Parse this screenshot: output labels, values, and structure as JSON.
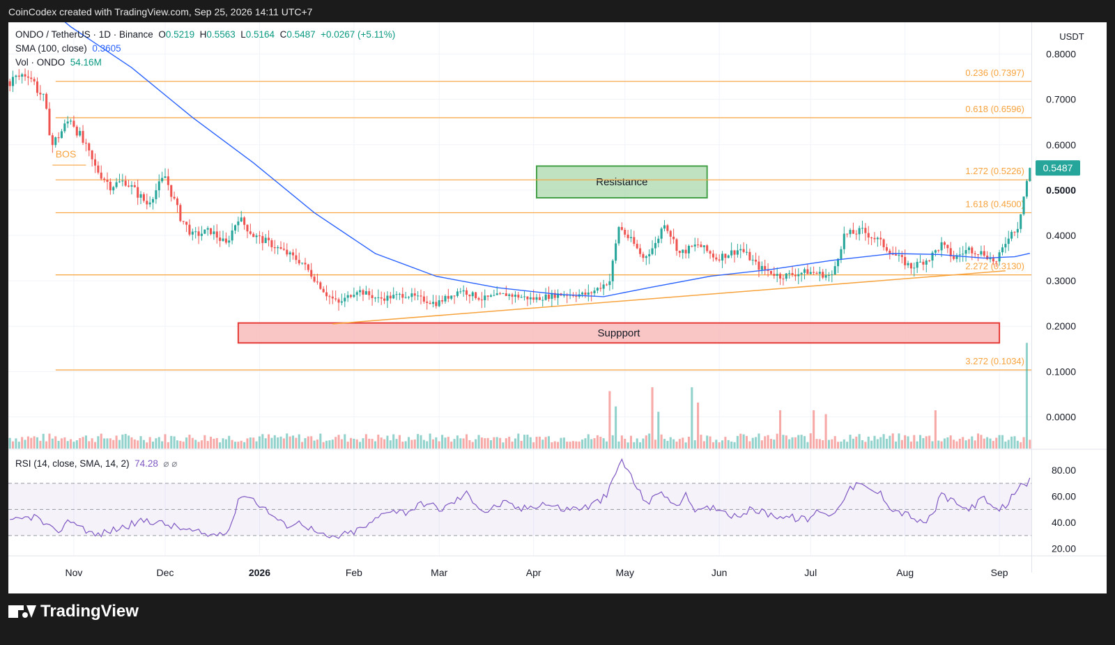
{
  "header": {
    "caption": "CoinCodex created with TradingView.com, Sep 25, 2026 14:11 UTC+7"
  },
  "legend": {
    "symbol": "ONDO / TetherUS · 1D · Binance",
    "o_label": "O",
    "o_value": "0.5219",
    "h_label": "H",
    "h_value": "0.5563",
    "l_label": "L",
    "l_value": "0.5164",
    "c_label": "C",
    "c_value": "0.5487",
    "change": "+0.0267 (+5.11%)",
    "sma_label": "SMA (100, close)",
    "sma_value": "0.3605",
    "vol_label": "Vol · ONDO",
    "vol_value": "54.16M",
    "rsi_label": "RSI (14, close, SMA, 14, 2)",
    "rsi_value": "74.28",
    "rsi_extra": "⌀ ⌀"
  },
  "currency": "USDT",
  "current_price_label": "0.5487",
  "footer": {
    "brand": "TradingView"
  },
  "colors": {
    "up": "#26a69a",
    "down": "#ef5350",
    "sma": "#2962ff",
    "fib": "#f7a23b",
    "rsi": "#7e57c2",
    "resistance_fill": "#a5d6a7",
    "support_fill": "#f8bbbb"
  },
  "chart_data": [
    {
      "type": "candlestick",
      "scale": "linear",
      "y_range": [
        -0.07,
        0.87
      ],
      "y_ticks": [
        "0.8000",
        "0.7000",
        "0.6000",
        "0.5000",
        "0.4000",
        "0.3000",
        "0.2000",
        "0.1000",
        "0.0000"
      ],
      "y_tick_values": [
        0.8,
        0.7,
        0.6,
        0.5,
        0.4,
        0.3,
        0.2,
        0.1,
        0.0
      ],
      "x_labels": [
        "Nov",
        "Dec",
        "2026",
        "Feb",
        "Mar",
        "Apr",
        "May",
        "Jun",
        "Jul",
        "Aug",
        "Sep"
      ],
      "x_label_days": [
        21,
        51,
        82,
        113,
        141,
        172,
        202,
        233,
        263,
        294,
        325
      ],
      "days_total": 336,
      "close_anchors": [
        [
          0,
          0.74
        ],
        [
          6,
          0.76
        ],
        [
          11,
          0.7
        ],
        [
          14,
          0.6
        ],
        [
          20,
          0.66
        ],
        [
          28,
          0.55
        ],
        [
          33,
          0.51
        ],
        [
          38,
          0.52
        ],
        [
          45,
          0.47
        ],
        [
          51,
          0.53
        ],
        [
          56,
          0.44
        ],
        [
          60,
          0.4
        ],
        [
          66,
          0.41
        ],
        [
          71,
          0.38
        ],
        [
          75,
          0.44
        ],
        [
          80,
          0.4
        ],
        [
          86,
          0.38
        ],
        [
          96,
          0.34
        ],
        [
          104,
          0.27
        ],
        [
          108,
          0.25
        ],
        [
          114,
          0.28
        ],
        [
          121,
          0.26
        ],
        [
          130,
          0.27
        ],
        [
          140,
          0.25
        ],
        [
          148,
          0.28
        ],
        [
          155,
          0.26
        ],
        [
          163,
          0.27
        ],
        [
          172,
          0.26
        ],
        [
          180,
          0.27
        ],
        [
          190,
          0.27
        ],
        [
          197,
          0.3
        ],
        [
          200,
          0.42
        ],
        [
          205,
          0.38
        ],
        [
          208,
          0.35
        ],
        [
          212,
          0.38
        ],
        [
          215,
          0.43
        ],
        [
          220,
          0.36
        ],
        [
          226,
          0.38
        ],
        [
          232,
          0.35
        ],
        [
          240,
          0.37
        ],
        [
          246,
          0.33
        ],
        [
          253,
          0.31
        ],
        [
          262,
          0.32
        ],
        [
          270,
          0.31
        ],
        [
          274,
          0.4
        ],
        [
          280,
          0.41
        ],
        [
          285,
          0.39
        ],
        [
          290,
          0.36
        ],
        [
          296,
          0.33
        ],
        [
          302,
          0.35
        ],
        [
          306,
          0.38
        ],
        [
          310,
          0.35
        ],
        [
          315,
          0.37
        ],
        [
          320,
          0.36
        ],
        [
          324,
          0.34
        ],
        [
          328,
          0.4
        ],
        [
          331,
          0.42
        ],
        [
          334,
          0.52
        ],
        [
          335,
          0.5487
        ]
      ],
      "sma_100": [
        [
          0,
          0.97
        ],
        [
          20,
          0.86
        ],
        [
          40,
          0.77
        ],
        [
          60,
          0.66
        ],
        [
          80,
          0.56
        ],
        [
          100,
          0.45
        ],
        [
          120,
          0.36
        ],
        [
          140,
          0.31
        ],
        [
          160,
          0.285
        ],
        [
          180,
          0.27
        ],
        [
          195,
          0.265
        ],
        [
          210,
          0.285
        ],
        [
          230,
          0.31
        ],
        [
          250,
          0.325
        ],
        [
          270,
          0.345
        ],
        [
          290,
          0.36
        ],
        [
          305,
          0.358
        ],
        [
          320,
          0.35
        ],
        [
          330,
          0.353
        ],
        [
          335,
          0.3605
        ]
      ],
      "resistance_zone": {
        "label": "Resistance",
        "price_from": 0.483,
        "price_to": 0.553,
        "day_from": 173,
        "day_to": 229
      },
      "support_zone": {
        "label": "Suppport",
        "price_from": 0.163,
        "price_to": 0.207,
        "day_from": 75,
        "day_to": 325
      },
      "fib_levels": [
        {
          "label": "0.236 (0.7397)",
          "price": 0.7397
        },
        {
          "label": "0.618 (0.6596)",
          "price": 0.6596
        },
        {
          "label": "1.272 (0.5226)",
          "price": 0.5226
        },
        {
          "label": "1.618 (0.4500)",
          "price": 0.45
        },
        {
          "label": "2.272 (0.3130)",
          "price": 0.313
        },
        {
          "label": "3.272 (0.1034)",
          "price": 0.1034
        }
      ],
      "trendline": [
        [
          106,
          0.205
        ],
        [
          327,
          0.322
        ]
      ],
      "annotations": [
        {
          "text": "BOS",
          "day": 15,
          "price": 0.575
        }
      ]
    },
    {
      "type": "bar",
      "name": "Vol · ONDO",
      "spike_days": [
        197,
        199,
        211,
        213,
        224,
        226,
        253,
        264,
        268,
        304,
        334
      ],
      "spike_values": [
        0.75,
        0.55,
        0.8,
        0.48,
        0.8,
        0.6,
        0.5,
        0.5,
        0.45,
        0.5,
        1.2
      ]
    },
    {
      "type": "line",
      "name": "RSI (14, close, SMA, 14, 2)",
      "y_range": [
        15,
        95
      ],
      "y_ticks": [
        "80.00",
        "60.00",
        "40.00",
        "20.00"
      ],
      "y_tick_values": [
        80,
        60,
        40,
        20
      ],
      "bands": [
        70,
        50,
        30
      ],
      "anchors": [
        [
          0,
          40
        ],
        [
          8,
          45
        ],
        [
          15,
          32
        ],
        [
          20,
          42
        ],
        [
          28,
          30
        ],
        [
          35,
          35
        ],
        [
          45,
          42
        ],
        [
          52,
          38
        ],
        [
          60,
          33
        ],
        [
          66,
          30
        ],
        [
          72,
          35
        ],
        [
          76,
          62
        ],
        [
          80,
          58
        ],
        [
          84,
          50
        ],
        [
          90,
          38
        ],
        [
          96,
          40
        ],
        [
          102,
          30
        ],
        [
          106,
          28
        ],
        [
          112,
          32
        ],
        [
          118,
          38
        ],
        [
          124,
          50
        ],
        [
          130,
          48
        ],
        [
          136,
          55
        ],
        [
          142,
          50
        ],
        [
          150,
          62
        ],
        [
          156,
          48
        ],
        [
          162,
          55
        ],
        [
          168,
          50
        ],
        [
          175,
          55
        ],
        [
          182,
          50
        ],
        [
          190,
          52
        ],
        [
          196,
          60
        ],
        [
          199,
          78
        ],
        [
          201,
          88
        ],
        [
          204,
          75
        ],
        [
          207,
          62
        ],
        [
          210,
          55
        ],
        [
          214,
          65
        ],
        [
          218,
          52
        ],
        [
          222,
          60
        ],
        [
          226,
          48
        ],
        [
          232,
          52
        ],
        [
          238,
          45
        ],
        [
          244,
          50
        ],
        [
          250,
          46
        ],
        [
          256,
          44
        ],
        [
          262,
          42
        ],
        [
          266,
          50
        ],
        [
          270,
          45
        ],
        [
          274,
          60
        ],
        [
          278,
          70
        ],
        [
          282,
          65
        ],
        [
          286,
          62
        ],
        [
          290,
          50
        ],
        [
          296,
          45
        ],
        [
          300,
          38
        ],
        [
          304,
          50
        ],
        [
          306,
          62
        ],
        [
          310,
          55
        ],
        [
          314,
          50
        ],
        [
          320,
          58
        ],
        [
          324,
          48
        ],
        [
          328,
          55
        ],
        [
          332,
          72
        ],
        [
          334,
          65
        ],
        [
          335,
          74.28
        ]
      ]
    }
  ]
}
